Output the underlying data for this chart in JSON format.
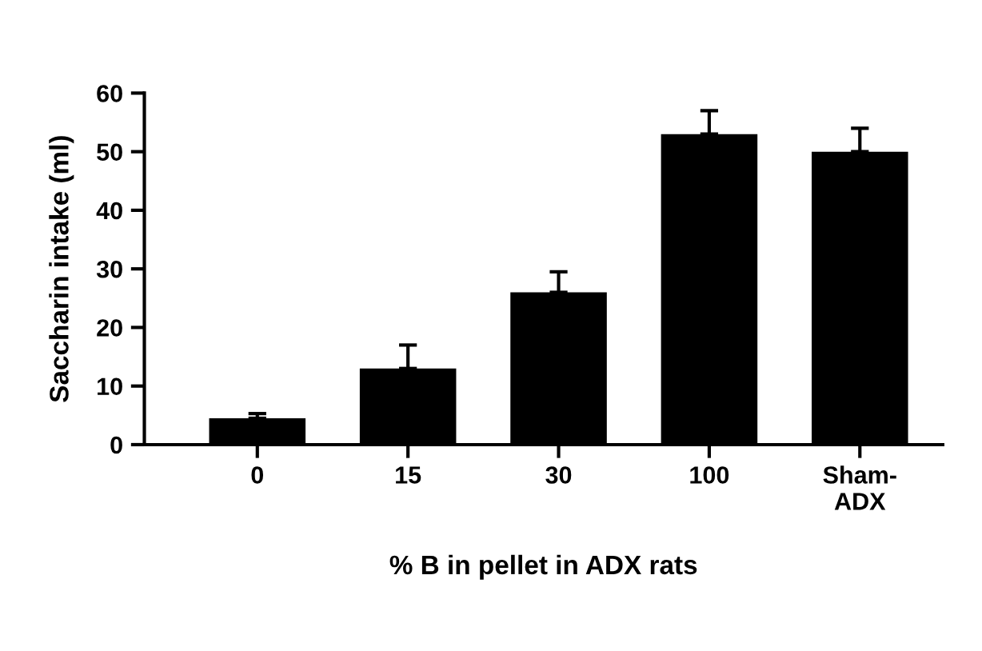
{
  "chart_data": {
    "type": "bar",
    "xlabel": "% B in pellet in ADX rats",
    "ylabel": "Saccharin intake (ml)",
    "categories": [
      "0",
      "15",
      "30",
      "100",
      "Sham-\nADX"
    ],
    "values": [
      4.5,
      13,
      26,
      53,
      50
    ],
    "errors": [
      [
        4.5,
        5.3
      ],
      [
        13,
        17
      ],
      [
        26,
        29.5
      ],
      [
        53,
        57
      ],
      [
        50,
        54
      ]
    ],
    "color": "#000000",
    "ylim": [
      0,
      60
    ],
    "yticks": [
      0,
      10,
      20,
      30,
      40,
      50,
      60
    ],
    "grid": false,
    "legend": false
  }
}
